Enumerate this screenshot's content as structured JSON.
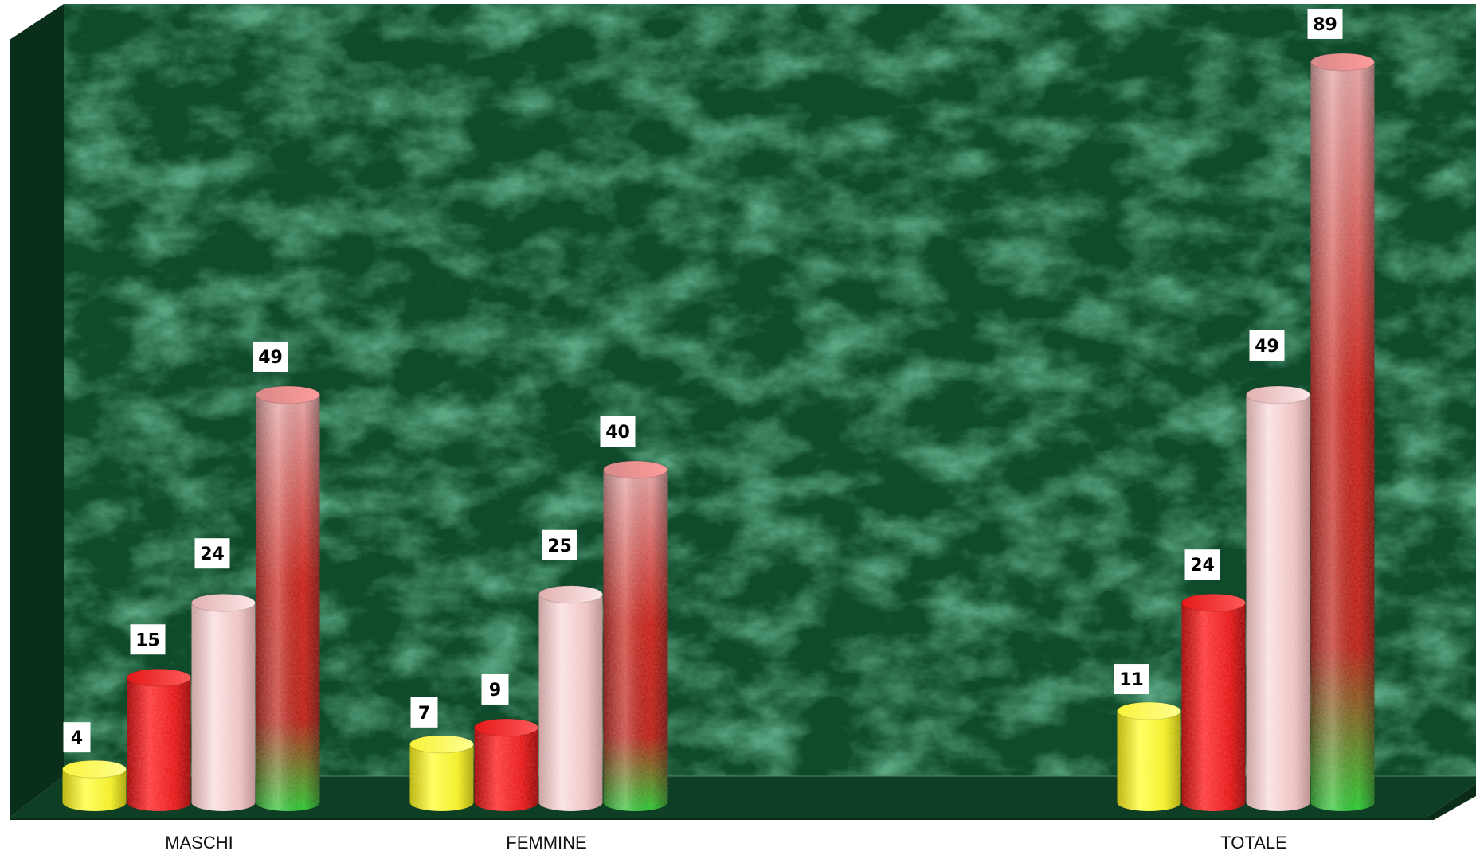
{
  "chart_data": {
    "type": "bar",
    "style": "3d-cylinder",
    "categories": [
      "MASCHI",
      "FEMMINE",
      "",
      "TOTALE"
    ],
    "series": [
      {
        "color": "#f2ee1e",
        "values": [
          4,
          7,
          null,
          11
        ]
      },
      {
        "color": "#ee1010",
        "values": [
          15,
          9,
          null,
          24
        ]
      },
      {
        "color": "#f0c2c2",
        "values": [
          24,
          25,
          null,
          49
        ]
      },
      {
        "color": "gradient-pink-red-green",
        "values": [
          49,
          40,
          null,
          89
        ]
      }
    ],
    "title": "",
    "xlabel": "",
    "ylabel": "",
    "ylim": [
      0,
      90
    ],
    "grid": false,
    "legend": "none",
    "background": "green-marble-texture"
  }
}
